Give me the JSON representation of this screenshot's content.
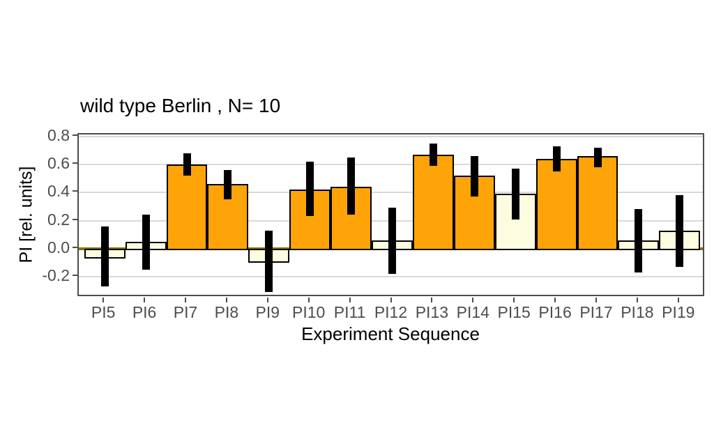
{
  "chart_data": {
    "type": "bar",
    "title": "wild type Berlin , N= 10",
    "xlabel": "Experiment Sequence",
    "ylabel": "PI [rel. units]",
    "ylim": [
      -0.35,
      0.815
    ],
    "yticks": [
      0.8,
      0.6,
      0.4,
      0.2,
      0.0,
      -0.2
    ],
    "grid": true,
    "legend": "none",
    "zero_line": true,
    "categories": [
      "PI5",
      "PI6",
      "PI7",
      "PI8",
      "PI9",
      "PI10",
      "PI11",
      "PI12",
      "PI13",
      "PI14",
      "PI15",
      "PI16",
      "PI17",
      "PI18",
      "PI19"
    ],
    "values": [
      -0.06,
      0.05,
      0.6,
      0.46,
      -0.09,
      0.42,
      0.44,
      0.06,
      0.67,
      0.52,
      0.39,
      0.64,
      0.66,
      0.06,
      0.13
    ],
    "error_low": [
      -0.27,
      -0.15,
      0.52,
      0.35,
      -0.31,
      0.23,
      0.24,
      -0.18,
      0.59,
      0.37,
      0.21,
      0.55,
      0.58,
      -0.17,
      -0.13
    ],
    "error_high": [
      0.16,
      0.24,
      0.68,
      0.56,
      0.13,
      0.62,
      0.65,
      0.29,
      0.75,
      0.66,
      0.57,
      0.73,
      0.72,
      0.28,
      0.38
    ],
    "bar_types": [
      "cream",
      "cream",
      "orange",
      "orange",
      "cream",
      "orange",
      "orange",
      "cream",
      "orange",
      "orange",
      "cream",
      "orange",
      "orange",
      "cream",
      "cream"
    ],
    "colors": {
      "orange": "#FFA408",
      "cream": "#FDFBE0",
      "bar_border": "#000000",
      "error_bar": "#000000",
      "zero_line": "#8B7500",
      "grid": "#D9D9D9",
      "panel_border": "#4D4D4D",
      "tick_label": "#4D4D4D",
      "axis_title": "#000000"
    }
  }
}
